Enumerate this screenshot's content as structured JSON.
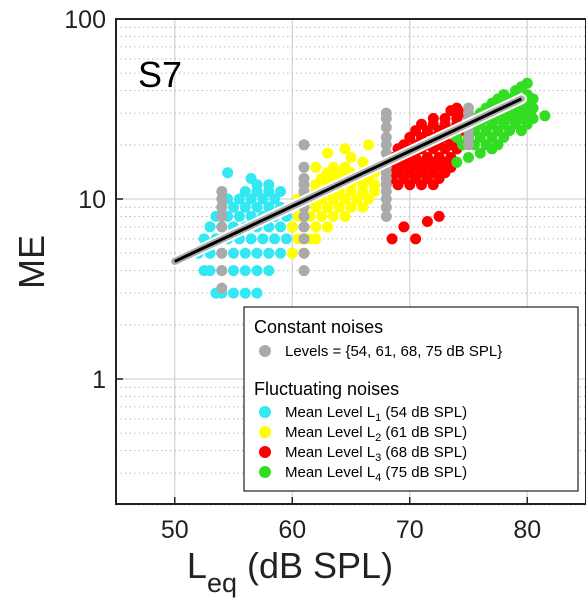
{
  "chart_data": {
    "type": "scatter",
    "panel_label": "S7",
    "xlabel_main": "L",
    "xlabel_sub": "eq",
    "xlabel_rest": " (dB SPL)",
    "ylabel": "ME",
    "xlim": [
      45,
      85
    ],
    "ylim": [
      0.2,
      100
    ],
    "yscale": "log",
    "xticks": [
      50,
      60,
      70,
      80
    ],
    "yticks": [
      1,
      10,
      100
    ],
    "grid": true,
    "legend_position": "bottom-right",
    "legend": {
      "constant_title": "Constant noises",
      "constant_entry": "Levels = {54, 61, 68, 75 dB SPL}",
      "fluctuating_title": "Fluctuating noises",
      "fluctuating_entries": [
        {
          "pre": "Mean Level L",
          "sub": "1",
          "post": " (54 dB SPL)",
          "color": "#33e8f2"
        },
        {
          "pre": "Mean Level L",
          "sub": "2",
          "post": " (61 dB SPL)",
          "color": "#ffff00"
        },
        {
          "pre": "Mean Level L",
          "sub": "3",
          "post": " (68 dB SPL)",
          "color": "#ff0000"
        },
        {
          "pre": "Mean Level L",
          "sub": "4",
          "post": " (75 dB SPL)",
          "color": "#33dd22"
        }
      ]
    },
    "fit_line": {
      "x": [
        50,
        79.5
      ],
      "y": [
        4.5,
        36
      ],
      "color": "#000000"
    },
    "constant_color": "#aaaaaa",
    "series": [
      {
        "name": "Mean Level L1 (54 dB SPL)",
        "color": "#33e8f2",
        "points": [
          [
            53.5,
            3
          ],
          [
            54,
            3
          ],
          [
            55,
            3
          ],
          [
            56,
            3
          ],
          [
            57,
            3
          ],
          [
            52.5,
            4
          ],
          [
            53,
            4
          ],
          [
            54,
            4
          ],
          [
            55,
            4
          ],
          [
            56,
            4
          ],
          [
            57,
            4
          ],
          [
            58,
            4
          ],
          [
            52,
            5
          ],
          [
            53,
            5
          ],
          [
            54,
            5
          ],
          [
            55,
            5
          ],
          [
            56,
            5
          ],
          [
            57,
            5
          ],
          [
            58,
            5
          ],
          [
            59,
            5
          ],
          [
            60,
            5
          ],
          [
            52.5,
            6
          ],
          [
            53.5,
            6
          ],
          [
            54.5,
            6
          ],
          [
            55.5,
            6
          ],
          [
            56.5,
            6
          ],
          [
            57.5,
            6
          ],
          [
            58.5,
            6
          ],
          [
            59.5,
            6
          ],
          [
            53,
            7
          ],
          [
            54,
            7
          ],
          [
            55,
            7
          ],
          [
            56,
            7
          ],
          [
            57,
            7
          ],
          [
            58,
            7
          ],
          [
            59,
            7
          ],
          [
            60,
            7
          ],
          [
            53.5,
            8
          ],
          [
            54.5,
            8
          ],
          [
            55.5,
            8
          ],
          [
            56.5,
            8
          ],
          [
            57.5,
            8
          ],
          [
            58.5,
            8
          ],
          [
            59.5,
            8
          ],
          [
            54,
            9
          ],
          [
            55,
            9
          ],
          [
            56,
            9
          ],
          [
            57,
            9
          ],
          [
            58,
            9
          ],
          [
            59,
            9
          ],
          [
            54.5,
            10
          ],
          [
            55.5,
            10
          ],
          [
            56.5,
            10
          ],
          [
            57.5,
            10
          ],
          [
            58.5,
            10
          ],
          [
            56,
            11
          ],
          [
            57,
            11
          ],
          [
            58,
            11
          ],
          [
            59,
            11
          ],
          [
            57,
            12
          ],
          [
            58,
            12
          ],
          [
            56.5,
            13
          ],
          [
            54.5,
            14
          ]
        ]
      },
      {
        "name": "Mean Level L2 (61 dB SPL)",
        "color": "#ffff00",
        "points": [
          [
            60,
            5
          ],
          [
            61,
            5
          ],
          [
            60.5,
            6
          ],
          [
            61.5,
            6
          ],
          [
            62,
            6
          ],
          [
            60,
            7
          ],
          [
            61,
            7
          ],
          [
            62,
            7
          ],
          [
            63,
            7
          ],
          [
            60.5,
            8
          ],
          [
            61.5,
            8
          ],
          [
            62.5,
            8
          ],
          [
            63.5,
            8
          ],
          [
            64.5,
            8
          ],
          [
            61,
            9
          ],
          [
            62,
            9
          ],
          [
            63,
            9
          ],
          [
            64,
            9
          ],
          [
            65,
            9
          ],
          [
            66,
            9
          ],
          [
            60.5,
            10
          ],
          [
            61.5,
            10
          ],
          [
            62.5,
            10
          ],
          [
            63.5,
            10
          ],
          [
            64.5,
            10
          ],
          [
            65.5,
            10
          ],
          [
            66.5,
            10
          ],
          [
            61,
            11
          ],
          [
            62,
            11
          ],
          [
            63,
            11
          ],
          [
            64,
            11
          ],
          [
            65,
            11
          ],
          [
            66,
            11
          ],
          [
            67,
            11
          ],
          [
            62,
            12
          ],
          [
            63,
            12
          ],
          [
            64,
            12
          ],
          [
            65,
            12
          ],
          [
            66,
            12
          ],
          [
            67,
            12
          ],
          [
            62.5,
            13
          ],
          [
            63.5,
            13
          ],
          [
            64.5,
            13
          ],
          [
            65.5,
            13
          ],
          [
            66.5,
            13
          ],
          [
            63,
            14
          ],
          [
            64,
            14
          ],
          [
            65,
            14
          ],
          [
            66,
            14
          ],
          [
            67,
            14
          ],
          [
            62,
            15
          ],
          [
            63.5,
            15
          ],
          [
            64.5,
            15
          ],
          [
            66,
            16
          ],
          [
            65,
            17
          ],
          [
            63,
            18
          ],
          [
            64.5,
            19
          ],
          [
            66.5,
            20
          ]
        ]
      },
      {
        "name": "Mean Level L3 (68 dB SPL)",
        "color": "#ff0000",
        "points": [
          [
            68.5,
            6
          ],
          [
            70.5,
            6
          ],
          [
            69.5,
            7
          ],
          [
            71.5,
            7.5
          ],
          [
            72.5,
            8
          ],
          [
            68,
            12
          ],
          [
            69,
            12
          ],
          [
            70,
            12
          ],
          [
            71,
            12
          ],
          [
            72,
            12
          ],
          [
            68.5,
            13
          ],
          [
            69.5,
            13
          ],
          [
            70.5,
            13
          ],
          [
            71.5,
            13
          ],
          [
            72.5,
            13
          ],
          [
            68,
            14
          ],
          [
            69,
            14
          ],
          [
            70,
            14
          ],
          [
            71,
            14
          ],
          [
            72,
            14
          ],
          [
            73,
            14
          ],
          [
            68.5,
            15
          ],
          [
            69.5,
            15
          ],
          [
            70.5,
            15
          ],
          [
            71.5,
            15
          ],
          [
            72.5,
            15
          ],
          [
            73.5,
            15
          ],
          [
            68,
            16
          ],
          [
            69,
            16
          ],
          [
            70,
            16
          ],
          [
            71,
            16
          ],
          [
            72,
            16
          ],
          [
            73,
            16
          ],
          [
            68.5,
            17
          ],
          [
            69.5,
            17
          ],
          [
            70.5,
            17
          ],
          [
            71.5,
            17
          ],
          [
            72.5,
            17
          ],
          [
            73.5,
            17
          ],
          [
            69,
            19
          ],
          [
            70,
            19
          ],
          [
            71,
            19
          ],
          [
            72,
            19
          ],
          [
            73,
            19
          ],
          [
            74,
            19
          ],
          [
            69.5,
            20
          ],
          [
            70.5,
            20
          ],
          [
            71.5,
            20
          ],
          [
            72.5,
            20
          ],
          [
            73.5,
            20
          ],
          [
            70,
            22
          ],
          [
            71,
            22
          ],
          [
            72,
            22
          ],
          [
            73,
            22
          ],
          [
            74,
            22
          ],
          [
            75,
            22
          ],
          [
            70.5,
            24
          ],
          [
            71.5,
            24
          ],
          [
            72.5,
            24
          ],
          [
            73.5,
            24
          ],
          [
            74.5,
            24
          ],
          [
            71,
            26
          ],
          [
            72,
            26
          ],
          [
            73,
            26
          ],
          [
            74,
            26
          ],
          [
            75,
            26
          ],
          [
            72,
            28
          ],
          [
            73,
            28
          ],
          [
            74,
            28
          ],
          [
            74.5,
            30
          ],
          [
            73.5,
            31
          ],
          [
            74,
            32
          ]
        ]
      },
      {
        "name": "Mean Level L4 (75 dB SPL)",
        "color": "#33dd22",
        "points": [
          [
            74,
            16
          ],
          [
            75,
            17
          ],
          [
            76,
            18
          ],
          [
            77,
            19
          ],
          [
            74.5,
            20
          ],
          [
            75.5,
            20
          ],
          [
            76.5,
            20
          ],
          [
            77.5,
            20
          ],
          [
            74,
            22
          ],
          [
            75,
            22
          ],
          [
            76,
            22
          ],
          [
            77,
            22
          ],
          [
            78,
            22
          ],
          [
            75.5,
            24
          ],
          [
            76.5,
            24
          ],
          [
            77.5,
            24
          ],
          [
            78.5,
            24
          ],
          [
            79.5,
            24
          ],
          [
            75,
            26
          ],
          [
            76,
            26
          ],
          [
            77,
            26
          ],
          [
            78,
            26
          ],
          [
            79,
            26
          ],
          [
            80,
            26
          ],
          [
            75.5,
            28
          ],
          [
            76.5,
            28
          ],
          [
            77.5,
            28
          ],
          [
            78.5,
            28
          ],
          [
            79.5,
            28
          ],
          [
            80.5,
            28
          ],
          [
            76,
            30
          ],
          [
            77,
            30
          ],
          [
            78,
            30
          ],
          [
            79,
            30
          ],
          [
            80,
            30
          ],
          [
            81.5,
            29
          ],
          [
            76.5,
            32
          ],
          [
            77.5,
            32
          ],
          [
            78.5,
            32
          ],
          [
            79.5,
            32
          ],
          [
            80.5,
            32
          ],
          [
            77,
            34
          ],
          [
            78,
            34
          ],
          [
            79,
            34
          ],
          [
            80,
            34
          ],
          [
            77.5,
            36
          ],
          [
            78.5,
            36
          ],
          [
            79.5,
            36
          ],
          [
            80.5,
            36
          ],
          [
            78,
            38
          ],
          [
            79,
            38
          ],
          [
            80,
            38
          ],
          [
            79,
            40
          ],
          [
            79.5,
            42
          ],
          [
            80,
            44
          ]
        ]
      },
      {
        "name": "Constant noises",
        "color": "#aaaaaa",
        "points": [
          [
            54,
            3.2
          ],
          [
            54,
            4
          ],
          [
            54,
            5
          ],
          [
            54,
            6
          ],
          [
            54,
            7
          ],
          [
            54,
            8
          ],
          [
            54,
            9
          ],
          [
            54,
            10
          ],
          [
            54,
            11
          ],
          [
            61,
            4
          ],
          [
            61,
            5
          ],
          [
            61,
            6
          ],
          [
            61,
            7
          ],
          [
            61,
            8
          ],
          [
            61,
            9
          ],
          [
            61,
            10
          ],
          [
            61,
            11
          ],
          [
            61,
            12
          ],
          [
            61,
            13
          ],
          [
            61,
            15
          ],
          [
            61,
            20
          ],
          [
            68,
            8
          ],
          [
            68,
            9
          ],
          [
            68,
            10
          ],
          [
            68,
            11
          ],
          [
            68,
            12
          ],
          [
            68,
            13
          ],
          [
            68,
            14
          ],
          [
            68,
            15
          ],
          [
            68,
            16
          ],
          [
            68,
            18
          ],
          [
            68,
            20
          ],
          [
            68,
            22
          ],
          [
            68,
            25
          ],
          [
            68,
            28
          ],
          [
            68,
            30
          ],
          [
            75,
            20
          ],
          [
            75,
            22
          ],
          [
            75,
            24
          ],
          [
            75,
            26
          ],
          [
            75,
            28
          ],
          [
            75,
            30
          ],
          [
            75,
            32
          ]
        ]
      }
    ]
  }
}
